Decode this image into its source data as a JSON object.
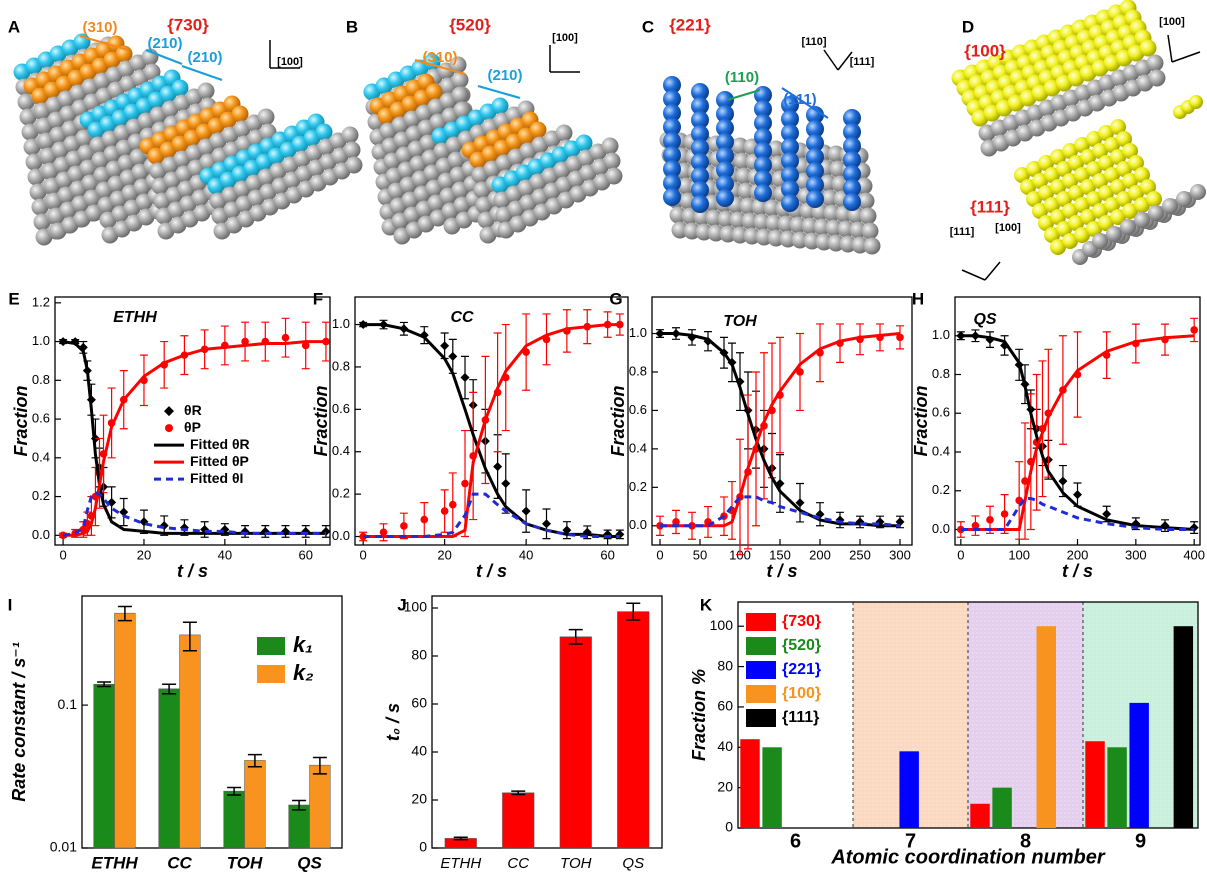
{
  "models": [
    {
      "label": "A",
      "families": [
        "{730}"
      ],
      "facets": [
        "(310)",
        "(210)",
        "(210)"
      ],
      "axes": [
        "[100]"
      ]
    },
    {
      "label": "B",
      "families": [
        "{520}"
      ],
      "facets": [
        "(310)",
        "(210)"
      ],
      "axes": [
        "[100]"
      ]
    },
    {
      "label": "C",
      "families": [
        "{221}"
      ],
      "facets": [
        "(110)",
        "(111)"
      ],
      "axes": [
        "[110]",
        "[111]"
      ]
    },
    {
      "label": "D",
      "families": [
        "{100}",
        "{111}"
      ],
      "facets": [],
      "axes": [
        "[100]",
        "[111]",
        "[100]"
      ]
    }
  ],
  "chart_data": [
    {
      "type": "line",
      "panel": "E",
      "title": "ETHH",
      "xlabel": "t / s",
      "ylabel": "Fraction",
      "x": [
        0,
        3,
        5,
        6,
        7,
        8,
        9,
        10,
        12,
        15,
        20,
        25,
        30,
        35,
        40,
        45,
        50,
        55,
        60,
        65
      ],
      "xlim": [
        -2,
        66
      ],
      "xticks": [
        0,
        20,
        40,
        60
      ],
      "ylim": [
        -0.05,
        1.23
      ],
      "yticks": [
        {
          "value": 0,
          "label": "0.0"
        },
        0.2,
        0.4,
        0.6,
        0.8,
        {
          "value": 1,
          "label": "1.0"
        },
        1.2
      ],
      "legend": "center",
      "series": [
        {
          "name": "θR",
          "color": "#000000",
          "style": "diamond",
          "values": [
            1.0,
            1.0,
            0.97,
            0.85,
            0.7,
            0.5,
            0.35,
            0.25,
            0.17,
            0.12,
            0.07,
            0.05,
            0.04,
            0.03,
            0.03,
            0.02,
            0.02,
            0.02,
            0.02,
            0.02
          ],
          "errors": [
            0.01,
            0.01,
            0.03,
            0.05,
            0.08,
            0.1,
            0.1,
            0.1,
            0.08,
            0.07,
            0.06,
            0.05,
            0.04,
            0.04,
            0.03,
            0.03,
            0.03,
            0.03,
            0.03,
            0.03
          ]
        },
        {
          "name": "θP",
          "color": "#ff0000",
          "style": "circle",
          "values": [
            0.0,
            0.01,
            0.03,
            0.06,
            0.1,
            0.2,
            0.32,
            0.42,
            0.58,
            0.7,
            0.8,
            0.88,
            0.93,
            0.96,
            0.98,
            1.0,
            1.0,
            1.02,
            0.98,
            1.0
          ],
          "errors": [
            0.01,
            0.02,
            0.04,
            0.06,
            0.1,
            0.15,
            0.18,
            0.2,
            0.18,
            0.15,
            0.13,
            0.12,
            0.1,
            0.1,
            0.1,
            0.1,
            0.1,
            0.1,
            0.12,
            0.1
          ]
        },
        {
          "name": "Fitted θR",
          "color": "#000000",
          "style": "solid",
          "values": [
            1.0,
            0.99,
            0.95,
            0.85,
            0.65,
            0.42,
            0.26,
            0.16,
            0.07,
            0.03,
            0.02,
            0.01,
            0.01,
            0.01,
            0.01,
            0.01,
            0.01,
            0.01,
            0.01,
            0.01
          ]
        },
        {
          "name": "Fitted θP",
          "color": "#ff0000",
          "style": "solid",
          "values": [
            0,
            0,
            0.01,
            0.02,
            0.06,
            0.14,
            0.26,
            0.38,
            0.56,
            0.7,
            0.82,
            0.89,
            0.93,
            0.96,
            0.97,
            0.98,
            0.99,
            0.99,
            1.0,
            1.0
          ]
        },
        {
          "name": "Fitted θI",
          "color": "#1f2bd6",
          "style": "dashed",
          "values": [
            0,
            0.01,
            0.04,
            0.13,
            0.2,
            0.22,
            0.21,
            0.19,
            0.14,
            0.1,
            0.06,
            0.04,
            0.03,
            0.02,
            0.02,
            0.01,
            0.01,
            0.01,
            0.01,
            0.01
          ]
        }
      ]
    },
    {
      "type": "line",
      "panel": "F",
      "title": "CC",
      "xlabel": "t / s",
      "ylabel": "Fraction",
      "x": [
        0,
        5,
        10,
        15,
        20,
        22,
        25,
        27,
        30,
        33,
        35,
        40,
        45,
        50,
        55,
        60,
        63
      ],
      "xlim": [
        -2,
        65
      ],
      "xticks": [
        0,
        20,
        40,
        60
      ],
      "ylim": [
        -0.04,
        1.13
      ],
      "yticks": [
        {
          "value": 0,
          "label": "0.0"
        },
        0.2,
        0.4,
        0.6,
        0.8,
        {
          "value": 1,
          "label": "1.0"
        }
      ],
      "series": [
        {
          "color": "#000000",
          "style": "diamond",
          "values": [
            1.0,
            1.0,
            0.98,
            0.95,
            0.9,
            0.85,
            0.75,
            0.62,
            0.45,
            0.33,
            0.25,
            0.12,
            0.06,
            0.03,
            0.02,
            0.01,
            0.01
          ],
          "errors": [
            0.01,
            0.02,
            0.03,
            0.04,
            0.06,
            0.08,
            0.1,
            0.12,
            0.15,
            0.15,
            0.14,
            0.1,
            0.07,
            0.04,
            0.03,
            0.02,
            0.02
          ]
        },
        {
          "color": "#ff0000",
          "style": "circle",
          "values": [
            0,
            0.02,
            0.05,
            0.08,
            0.12,
            0.15,
            0.25,
            0.38,
            0.55,
            0.68,
            0.75,
            0.87,
            0.93,
            0.97,
            0.99,
            1.0,
            1.0
          ],
          "errors": [
            0.02,
            0.04,
            0.06,
            0.08,
            0.1,
            0.15,
            0.25,
            0.3,
            0.3,
            0.28,
            0.25,
            0.18,
            0.12,
            0.1,
            0.08,
            0.06,
            0.05
          ]
        },
        {
          "color": "#000000",
          "style": "solid",
          "values": [
            1.0,
            1.0,
            0.98,
            0.94,
            0.84,
            0.77,
            0.6,
            0.48,
            0.32,
            0.2,
            0.14,
            0.06,
            0.03,
            0.01,
            0.01,
            0,
            0
          ]
        },
        {
          "color": "#ff0000",
          "style": "solid",
          "values": [
            0,
            0,
            0,
            0,
            0,
            0,
            0.03,
            0.35,
            0.55,
            0.7,
            0.78,
            0.9,
            0.95,
            0.98,
            0.99,
            1.0,
            1.0
          ]
        },
        {
          "color": "#1f2bd6",
          "style": "dashed",
          "values": [
            0,
            0,
            0,
            0,
            0.01,
            0.02,
            0.1,
            0.2,
            0.2,
            0.15,
            0.12,
            0.06,
            0.03,
            0.01,
            0,
            0,
            0
          ]
        }
      ]
    },
    {
      "type": "line",
      "panel": "G",
      "title": "TOH",
      "xlabel": "t / s",
      "ylabel": "Fraction",
      "x": [
        0,
        20,
        40,
        60,
        80,
        90,
        100,
        110,
        120,
        130,
        140,
        150,
        175,
        200,
        225,
        250,
        275,
        300
      ],
      "xlim": [
        -10,
        315
      ],
      "xticks": [
        0,
        50,
        100,
        150,
        200,
        250,
        300
      ],
      "ylim": [
        -0.1,
        1.19
      ],
      "yticks": [
        {
          "value": 0,
          "label": "0.0"
        },
        0.2,
        0.4,
        0.6,
        0.8,
        {
          "value": 1,
          "label": "1.0"
        }
      ],
      "series": [
        {
          "color": "#000000",
          "style": "diamond",
          "values": [
            1.0,
            1.0,
            0.98,
            0.96,
            0.9,
            0.85,
            0.75,
            0.6,
            0.5,
            0.4,
            0.3,
            0.22,
            0.12,
            0.06,
            0.03,
            0.02,
            0.02,
            0.02
          ],
          "errors": [
            0.02,
            0.03,
            0.04,
            0.05,
            0.08,
            0.1,
            0.15,
            0.2,
            0.2,
            0.2,
            0.18,
            0.15,
            0.1,
            0.06,
            0.04,
            0.03,
            0.03,
            0.03
          ]
        },
        {
          "color": "#ff0000",
          "style": "circle",
          "values": [
            0,
            0.02,
            0.0,
            0.02,
            0.05,
            0.08,
            0.15,
            0.28,
            0.4,
            0.52,
            0.6,
            0.68,
            0.8,
            0.9,
            0.95,
            0.97,
            0.98,
            0.98
          ],
          "errors": [
            0.05,
            0.06,
            0.07,
            0.08,
            0.1,
            0.15,
            0.3,
            0.4,
            0.4,
            0.38,
            0.35,
            0.3,
            0.2,
            0.15,
            0.1,
            0.08,
            0.07,
            0.06
          ]
        },
        {
          "color": "#000000",
          "style": "solid",
          "values": [
            1.0,
            1.0,
            0.99,
            0.97,
            0.9,
            0.84,
            0.72,
            0.58,
            0.45,
            0.34,
            0.25,
            0.18,
            0.08,
            0.03,
            0.01,
            0.01,
            0,
            0
          ]
        },
        {
          "color": "#ff0000",
          "style": "solid",
          "values": [
            0,
            0,
            0,
            0,
            0,
            0.02,
            0.15,
            0.3,
            0.42,
            0.54,
            0.63,
            0.7,
            0.84,
            0.92,
            0.96,
            0.98,
            0.99,
            1.0
          ]
        },
        {
          "color": "#1f2bd6",
          "style": "dashed",
          "values": [
            0,
            0,
            0,
            0,
            0.05,
            0.1,
            0.15,
            0.15,
            0.15,
            0.13,
            0.12,
            0.1,
            0.07,
            0.04,
            0.02,
            0.01,
            0.01,
            0
          ]
        }
      ]
    },
    {
      "type": "line",
      "panel": "H",
      "title": "QS",
      "xlabel": "t / s",
      "ylabel": "Fraction",
      "x": [
        0,
        25,
        50,
        75,
        100,
        110,
        120,
        130,
        140,
        150,
        175,
        200,
        250,
        300,
        350,
        400
      ],
      "xlim": [
        -10,
        410
      ],
      "xticks": [
        0,
        100,
        200,
        300,
        400
      ],
      "ylim": [
        -0.08,
        1.2
      ],
      "yticks": [
        {
          "value": 0,
          "label": "0.0"
        },
        0.2,
        0.4,
        0.6,
        0.8,
        {
          "value": 1,
          "label": "1.0"
        }
      ],
      "series": [
        {
          "color": "#000000",
          "style": "diamond",
          "values": [
            1.0,
            1.0,
            0.98,
            0.95,
            0.85,
            0.75,
            0.62,
            0.52,
            0.43,
            0.36,
            0.25,
            0.18,
            0.08,
            0.03,
            0.02,
            0.01
          ],
          "errors": [
            0.02,
            0.03,
            0.04,
            0.05,
            0.08,
            0.1,
            0.1,
            0.1,
            0.1,
            0.1,
            0.08,
            0.06,
            0.04,
            0.03,
            0.03,
            0.03
          ]
        },
        {
          "color": "#ff0000",
          "style": "circle",
          "values": [
            0,
            0.02,
            0.05,
            0.08,
            0.15,
            0.25,
            0.35,
            0.45,
            0.52,
            0.6,
            0.72,
            0.8,
            0.9,
            0.96,
            0.98,
            1.03
          ],
          "errors": [
            0.04,
            0.05,
            0.07,
            0.1,
            0.2,
            0.3,
            0.35,
            0.35,
            0.35,
            0.33,
            0.28,
            0.22,
            0.12,
            0.1,
            0.08,
            0.06
          ]
        },
        {
          "color": "#000000",
          "style": "solid",
          "values": [
            1,
            1,
            0.99,
            0.97,
            0.86,
            0.74,
            0.6,
            0.48,
            0.38,
            0.3,
            0.19,
            0.12,
            0.05,
            0.02,
            0.01,
            0
          ]
        },
        {
          "color": "#ff0000",
          "style": "solid",
          "values": [
            0,
            0,
            0,
            0,
            0,
            0.15,
            0.3,
            0.42,
            0.5,
            0.58,
            0.72,
            0.82,
            0.92,
            0.97,
            0.99,
            1.0
          ]
        },
        {
          "color": "#1f2bd6",
          "style": "dashed",
          "values": [
            0,
            0,
            0,
            0,
            0.12,
            0.16,
            0.16,
            0.15,
            0.13,
            0.12,
            0.09,
            0.06,
            0.03,
            0.01,
            0,
            0
          ]
        }
      ]
    },
    {
      "type": "bar",
      "panel": "I",
      "ylabel": "Rate constant / s⁻¹",
      "log_y": true,
      "categories": [
        "ETHH",
        "CC",
        "TOH",
        "QS"
      ],
      "ylim": [
        0.01,
        0.58
      ],
      "yticks": [
        0.01,
        0.1
      ],
      "legend": "top right",
      "series": [
        {
          "name": "k₁",
          "color": "#1a8a1a",
          "values": [
            0.14,
            0.13,
            0.025,
            0.02
          ],
          "errors": [
            0.005,
            0.01,
            0.0015,
            0.0015
          ]
        },
        {
          "name": "k₂",
          "color": "#f7931e",
          "values": [
            0.44,
            0.31,
            0.041,
            0.038
          ],
          "errors": [
            0.05,
            0.07,
            0.004,
            0.005
          ]
        }
      ]
    },
    {
      "type": "bar",
      "panel": "J",
      "ylabel": "t₀ / s",
      "categories": [
        "ETHH",
        "CC",
        "TOH",
        "QS"
      ],
      "ylim": [
        0,
        105
      ],
      "yticks": [
        0,
        20,
        40,
        60,
        80,
        100
      ],
      "color": "#ff0000",
      "values": [
        4,
        23,
        88,
        98.5
      ],
      "errors": [
        0.5,
        0.7,
        3,
        3.5
      ]
    },
    {
      "type": "bar",
      "panel": "K",
      "xlabel": "Atomic coordination number",
      "ylabel": "Fraction %",
      "categories": [
        "6",
        "7",
        "8",
        "9"
      ],
      "ylim": [
        0,
        112
      ],
      "yticks": [
        0,
        20,
        40,
        60,
        80,
        100
      ],
      "band_colors": [
        "#ffffff",
        "#fbd9c0",
        "#e4d0ee",
        "#c9efdd"
      ],
      "legend": "top left",
      "legend_text_colored": true,
      "series": [
        {
          "name": "{730}",
          "color": "#ff0000",
          "values": [
            44,
            0,
            12,
            43
          ]
        },
        {
          "name": "{520}",
          "color": "#1a8a1a",
          "values": [
            40,
            0,
            20,
            40
          ]
        },
        {
          "name": "{221}",
          "color": "#0000ff",
          "values": [
            0,
            38,
            0,
            62
          ]
        },
        {
          "name": "{100}",
          "color": "#f7931e",
          "values": [
            0,
            0,
            100,
            0
          ]
        },
        {
          "name": "{111}",
          "color": "#000000",
          "values": [
            0,
            0,
            0,
            100
          ]
        }
      ]
    }
  ]
}
